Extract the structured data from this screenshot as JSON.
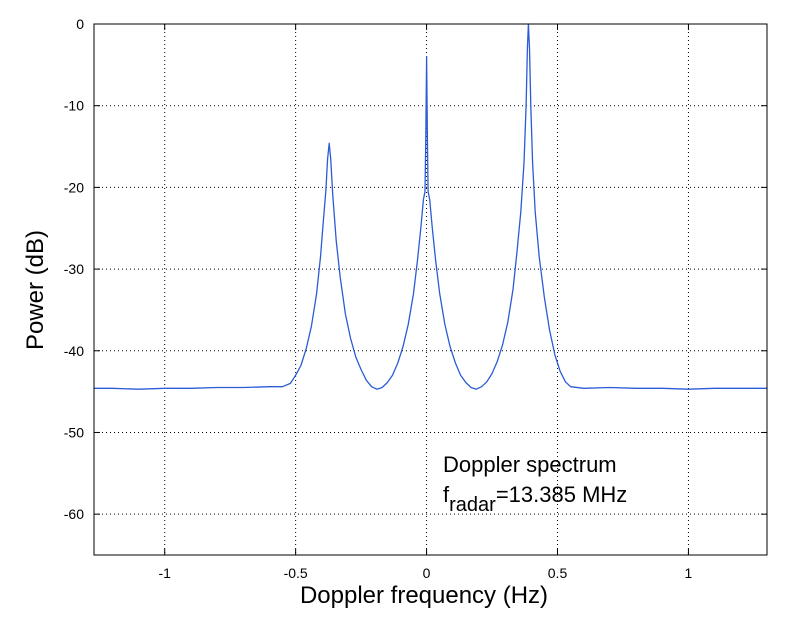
{
  "chart_data": {
    "type": "line",
    "title": "",
    "xlabel": "Doppler frequency (Hz)",
    "ylabel": "Power (dB)",
    "xlim": [
      -1.27,
      1.3
    ],
    "ylim": [
      -65,
      0
    ],
    "x_ticks": [
      -1,
      -0.5,
      0,
      0.5,
      1
    ],
    "x_tick_labels": [
      "-1",
      "-0.5",
      "0",
      "0.5",
      "1"
    ],
    "y_ticks": [
      0,
      -10,
      -20,
      -30,
      -40,
      -50,
      -60
    ],
    "y_tick_labels": [
      "0",
      "-10",
      "-20",
      "-30",
      "-40",
      "-50",
      "-60"
    ],
    "grid": true,
    "grid_style": "dotted",
    "line_color": "#2a5cd6",
    "annotation": {
      "line1": "Doppler spectrum",
      "line2_main": "f",
      "line2_sub": "radar",
      "line2_rest": "=13.385 MHz"
    },
    "series": [
      {
        "points": [
          [
            -1.27,
            -44.6
          ],
          [
            -1.2,
            -44.6
          ],
          [
            -1.1,
            -44.7
          ],
          [
            -1.0,
            -44.6
          ],
          [
            -0.9,
            -44.6
          ],
          [
            -0.8,
            -44.5
          ],
          [
            -0.7,
            -44.5
          ],
          [
            -0.6,
            -44.4
          ],
          [
            -0.55,
            -44.4
          ],
          [
            -0.52,
            -44.0
          ],
          [
            -0.5,
            -43.0
          ],
          [
            -0.48,
            -41.8
          ],
          [
            -0.46,
            -39.8
          ],
          [
            -0.44,
            -37.0
          ],
          [
            -0.42,
            -33.0
          ],
          [
            -0.405,
            -28.5
          ],
          [
            -0.395,
            -24.5
          ],
          [
            -0.385,
            -20.5
          ],
          [
            -0.378,
            -16.5
          ],
          [
            -0.372,
            -14.6
          ],
          [
            -0.366,
            -16.5
          ],
          [
            -0.358,
            -21.0
          ],
          [
            -0.345,
            -26.5
          ],
          [
            -0.33,
            -31.0
          ],
          [
            -0.31,
            -35.5
          ],
          [
            -0.29,
            -38.5
          ],
          [
            -0.27,
            -40.8
          ],
          [
            -0.25,
            -42.3
          ],
          [
            -0.23,
            -43.6
          ],
          [
            -0.21,
            -44.4
          ],
          [
            -0.19,
            -44.7
          ],
          [
            -0.17,
            -44.5
          ],
          [
            -0.15,
            -43.9
          ],
          [
            -0.13,
            -43.0
          ],
          [
            -0.11,
            -41.5
          ],
          [
            -0.09,
            -39.5
          ],
          [
            -0.07,
            -36.8
          ],
          [
            -0.05,
            -33.0
          ],
          [
            -0.035,
            -29.0
          ],
          [
            -0.022,
            -25.0
          ],
          [
            -0.012,
            -21.5
          ],
          [
            -0.006,
            -20.5
          ],
          [
            -0.003,
            -14.0
          ],
          [
            0.0,
            -4.0
          ],
          [
            0.003,
            -14.0
          ],
          [
            0.006,
            -20.5
          ],
          [
            0.012,
            -21.5
          ],
          [
            0.022,
            -25.0
          ],
          [
            0.035,
            -29.0
          ],
          [
            0.05,
            -33.0
          ],
          [
            0.07,
            -36.8
          ],
          [
            0.09,
            -39.5
          ],
          [
            0.11,
            -41.5
          ],
          [
            0.13,
            -43.0
          ],
          [
            0.15,
            -43.9
          ],
          [
            0.17,
            -44.5
          ],
          [
            0.19,
            -44.7
          ],
          [
            0.21,
            -44.4
          ],
          [
            0.23,
            -43.8
          ],
          [
            0.25,
            -42.8
          ],
          [
            0.27,
            -41.3
          ],
          [
            0.29,
            -39.3
          ],
          [
            0.31,
            -36.5
          ],
          [
            0.33,
            -32.5
          ],
          [
            0.345,
            -28.0
          ],
          [
            0.36,
            -23.0
          ],
          [
            0.372,
            -17.0
          ],
          [
            0.38,
            -10.0
          ],
          [
            0.385,
            -3.0
          ],
          [
            0.389,
            0.0
          ],
          [
            0.393,
            -3.0
          ],
          [
            0.398,
            -10.0
          ],
          [
            0.405,
            -17.0
          ],
          [
            0.415,
            -23.0
          ],
          [
            0.43,
            -28.5
          ],
          [
            0.45,
            -33.5
          ],
          [
            0.47,
            -37.5
          ],
          [
            0.49,
            -40.5
          ],
          [
            0.51,
            -42.5
          ],
          [
            0.53,
            -43.8
          ],
          [
            0.55,
            -44.4
          ],
          [
            0.6,
            -44.6
          ],
          [
            0.7,
            -44.5
          ],
          [
            0.8,
            -44.6
          ],
          [
            0.9,
            -44.6
          ],
          [
            1.0,
            -44.7
          ],
          [
            1.1,
            -44.6
          ],
          [
            1.2,
            -44.6
          ],
          [
            1.3,
            -44.6
          ]
        ]
      }
    ]
  }
}
